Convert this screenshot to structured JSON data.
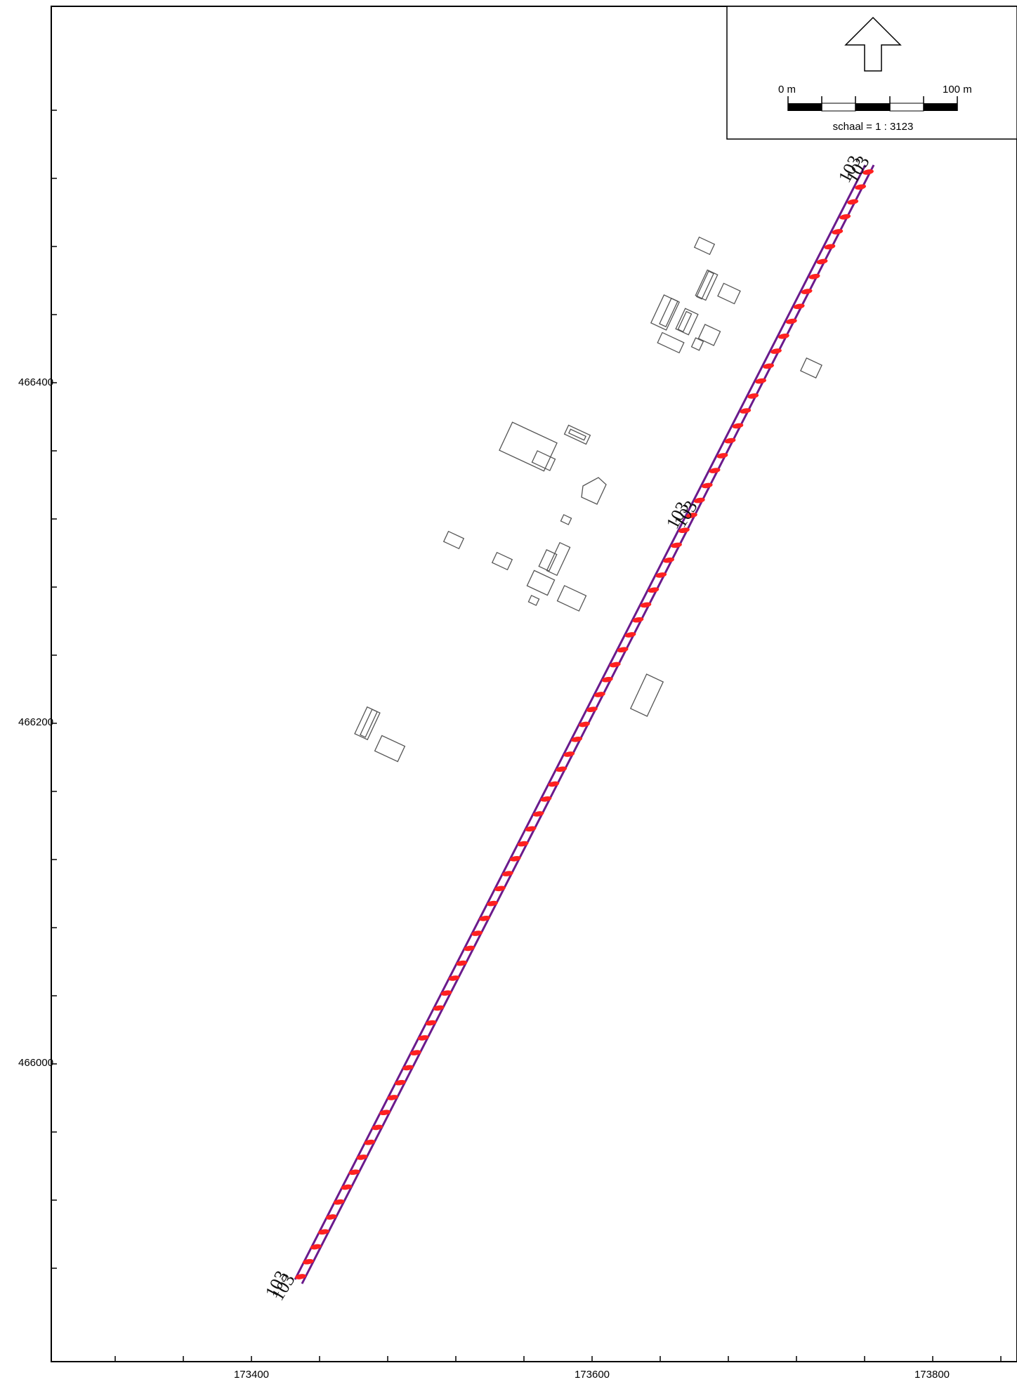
{
  "map": {
    "x_axis": {
      "ticks": [
        {
          "value": 173400,
          "label": "173400"
        },
        {
          "value": 173600,
          "label": "173600"
        },
        {
          "value": 173800,
          "label": "173800"
        }
      ]
    },
    "y_axis": {
      "ticks": [
        {
          "value": 466400,
          "label": "466400"
        },
        {
          "value": 466200,
          "label": "466200"
        },
        {
          "value": 466000,
          "label": "466000"
        }
      ]
    },
    "north_arrow": {
      "icon": "north-arrow-icon"
    },
    "scale_bar": {
      "start_label": "0 m",
      "end_label": "100 m",
      "scale_text": "schaal = 1 : 3123"
    },
    "route": {
      "colors": {
        "line": "#6a1a8c",
        "points": "#ff2020"
      },
      "labels": [
        {
          "text": "103",
          "position": "north-end"
        },
        {
          "text": "103",
          "position": "middle"
        },
        {
          "text": "103",
          "position": "south-end"
        }
      ]
    },
    "buildings": {
      "count_shown": 30,
      "outline_color": "#555555"
    }
  }
}
